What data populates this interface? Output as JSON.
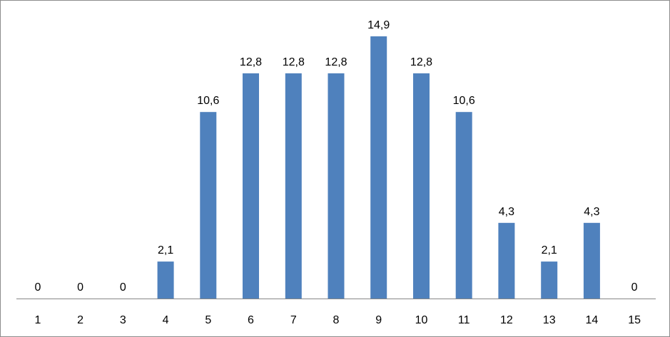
{
  "chart_data": {
    "type": "bar",
    "categories": [
      "1",
      "2",
      "3",
      "4",
      "5",
      "6",
      "7",
      "8",
      "9",
      "10",
      "11",
      "12",
      "13",
      "14",
      "15"
    ],
    "values": [
      0,
      0,
      0,
      2.1,
      10.6,
      12.8,
      12.8,
      12.8,
      14.9,
      12.8,
      10.6,
      4.3,
      2.1,
      4.3,
      0
    ],
    "data_labels": [
      "0",
      "0",
      "0",
      "2,1",
      "10,6",
      "12,8",
      "12,8",
      "12,8",
      "14,9",
      "12,8",
      "10,6",
      "4,3",
      "2,1",
      "4,3",
      "0"
    ],
    "title": "",
    "xlabel": "",
    "ylabel": "",
    "ylim": [
      0,
      14.9
    ],
    "grid": false,
    "legend": "none",
    "bar_color": "#4F81BD",
    "axis_color": "#868686"
  }
}
